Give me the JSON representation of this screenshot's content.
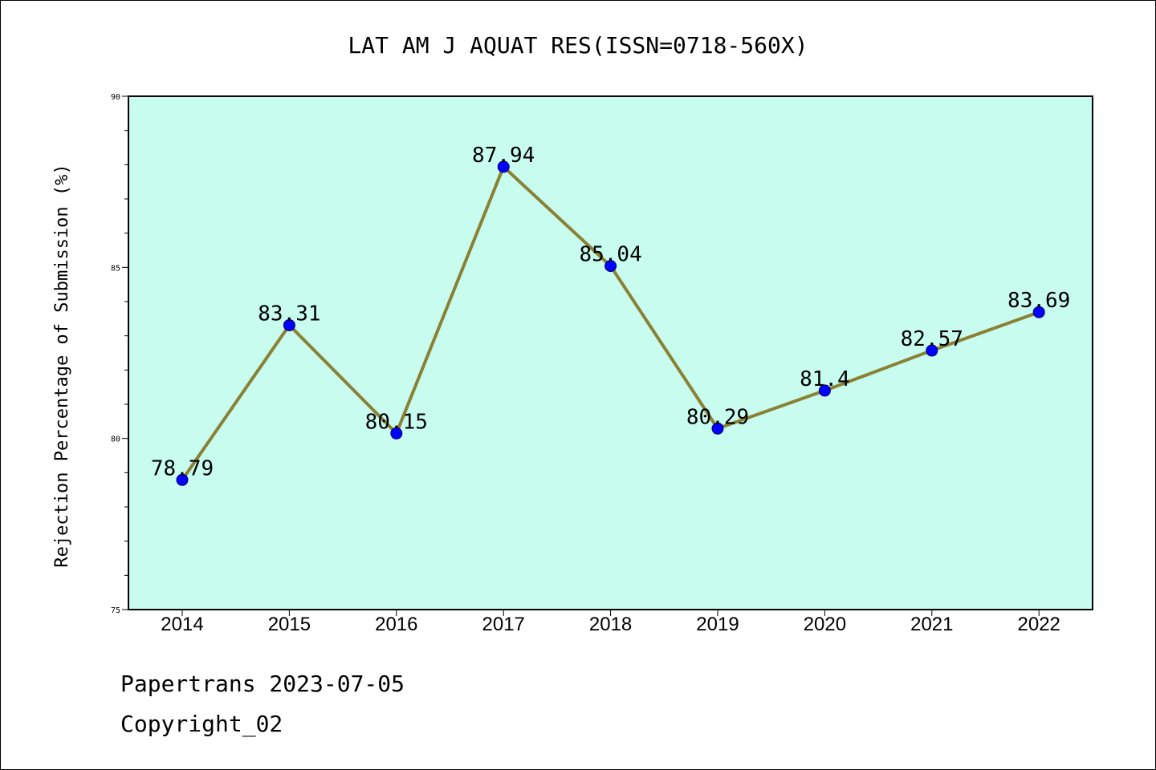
{
  "chart_data": {
    "type": "line",
    "title": "LAT AM J AQUAT RES(ISSN=0718-560X)",
    "xlabel": "",
    "ylabel": "Rejection Percentage of Submission (%)",
    "categories": [
      "2014",
      "2015",
      "2016",
      "2017",
      "2018",
      "2019",
      "2020",
      "2021",
      "2022"
    ],
    "series": [
      {
        "values": [
          78.79,
          83.31,
          80.15,
          87.94,
          85.04,
          80.29,
          81.4,
          82.57,
          83.69
        ]
      }
    ],
    "data_labels": [
      "78.79",
      "83.31",
      "80.15",
      "87.94",
      "85.04",
      "80.29",
      "81.4",
      "82.57",
      "83.69"
    ],
    "ylim": [
      75,
      90
    ],
    "yticks": [
      75,
      80,
      85,
      90
    ],
    "grid": false,
    "colors": {
      "plot_background": "#c8fcee",
      "line": "#8b8135",
      "marker": "#0000ff",
      "axis": "#000000"
    }
  },
  "footer": {
    "source": "Papertrans 2023-07-05",
    "copyright": "Copyright_02"
  }
}
